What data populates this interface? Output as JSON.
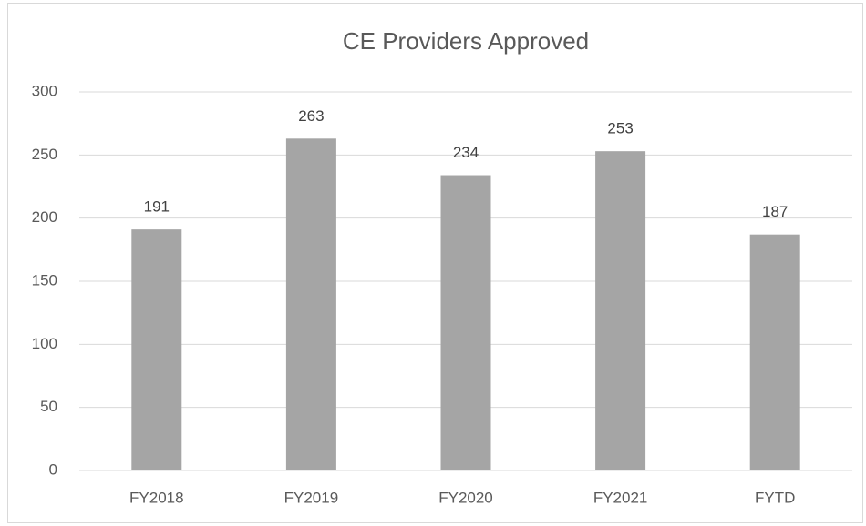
{
  "chart_data": {
    "type": "bar",
    "title": "CE Providers Approved",
    "categories": [
      "FY2018",
      "FY2019",
      "FY2020",
      "FY2021",
      "FYTD"
    ],
    "values": [
      191,
      263,
      234,
      253,
      187
    ],
    "color": "#a5a5a5",
    "ylim": [
      0,
      300
    ],
    "yticks": [
      0,
      50,
      100,
      150,
      200,
      250,
      300
    ],
    "grid": true,
    "data_labels": true
  }
}
